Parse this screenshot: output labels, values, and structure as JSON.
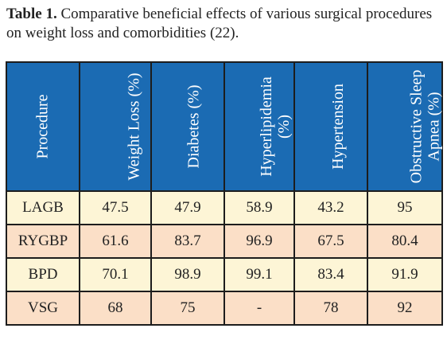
{
  "caption": {
    "label": "Table 1.",
    "text": " Comparative beneficial effects of various surgical procedures on weight loss and comorbidities (22)."
  },
  "table": {
    "headers": [
      [
        "Procedure"
      ],
      [
        "Weight Loss (%)"
      ],
      [
        "Diabetes (%)"
      ],
      [
        "Hyperlipidemia",
        "(%)"
      ],
      [
        "Hypertension"
      ],
      [
        "Obstructive Sleep",
        "Apnea (%)"
      ]
    ],
    "rows": [
      [
        "LAGB",
        "47.5",
        "47.9",
        "58.9",
        "43.2",
        "95"
      ],
      [
        "RYGBP",
        "61.6",
        "83.7",
        "96.9",
        "67.5",
        "80.4"
      ],
      [
        "BPD",
        "70.1",
        "98.9",
        "99.1",
        "83.4",
        "91.9"
      ],
      [
        "VSG",
        "68",
        "75",
        "-",
        "78",
        "92"
      ]
    ]
  },
  "colors": {
    "header_bg": "#1b6bb3",
    "row_odd_bg": "#fdf5d6",
    "row_even_bg": "#fbdfc7"
  }
}
